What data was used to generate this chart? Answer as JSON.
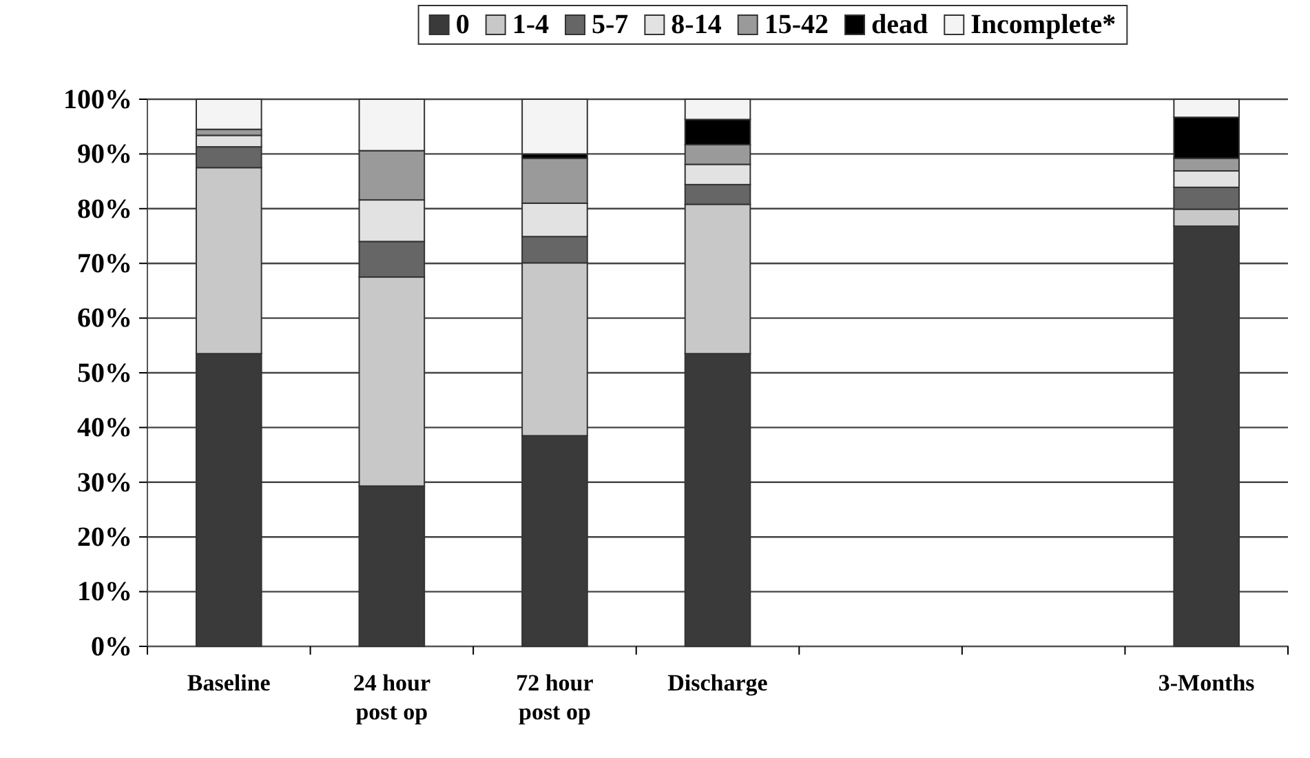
{
  "chart_data": {
    "type": "bar",
    "stacked": true,
    "categories": [
      "Baseline",
      "24 hour post op",
      "72 hour post op",
      "Discharge",
      null,
      null,
      "3-Months"
    ],
    "series": [
      {
        "name": "0",
        "color": "#3a3a3a",
        "values": [
          53.5,
          29.3,
          38.5,
          53.5,
          null,
          null,
          76.8
        ]
      },
      {
        "name": "1-4",
        "color": "#c8c8c8",
        "values": [
          34,
          38.2,
          31.6,
          27.3,
          null,
          null,
          3.1
        ]
      },
      {
        "name": "5-7",
        "color": "#666666",
        "values": [
          3.8,
          6.5,
          4.8,
          3.6,
          null,
          null,
          4
        ]
      },
      {
        "name": "8-14",
        "color": "#e2e2e2",
        "values": [
          2.1,
          7.6,
          6.1,
          3.7,
          null,
          null,
          3
        ]
      },
      {
        "name": "15-42",
        "color": "#9a9a9a",
        "values": [
          1.1,
          9,
          8.2,
          3.6,
          null,
          null,
          2.3
        ]
      },
      {
        "name": "dead",
        "color": "#000000",
        "values": [
          0,
          0,
          0.8,
          4.6,
          null,
          null,
          7.5
        ]
      },
      {
        "name": "Incomplete*",
        "color": "#f4f4f4",
        "values": [
          5.5,
          9.4,
          10,
          3.7,
          null,
          null,
          3.3
        ]
      }
    ],
    "ylim": [
      0,
      100
    ],
    "yticks": [
      {
        "value": 0,
        "label": "0%"
      },
      {
        "value": 10,
        "label": "10%"
      },
      {
        "value": 20,
        "label": "20%"
      },
      {
        "value": 30,
        "label": "30%"
      },
      {
        "value": 40,
        "label": "40%"
      },
      {
        "value": 50,
        "label": "50%"
      },
      {
        "value": 60,
        "label": "60%"
      },
      {
        "value": 70,
        "label": "70%"
      },
      {
        "value": 80,
        "label": "80%"
      },
      {
        "value": 90,
        "label": "90%"
      },
      {
        "value": 100,
        "label": "100%"
      }
    ],
    "grid": "y",
    "legend": "top"
  }
}
